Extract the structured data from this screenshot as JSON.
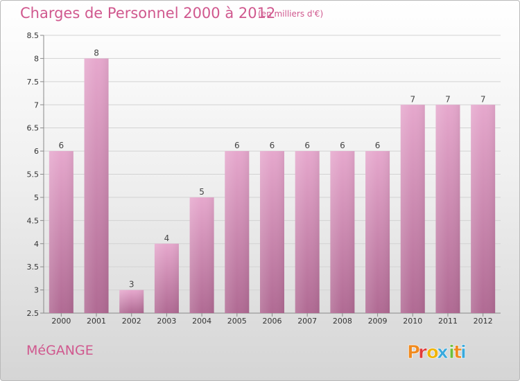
{
  "header": {
    "title": "Charges de Personnel 2000 à 2012",
    "unit": "(en milliers d'€)"
  },
  "footer": {
    "commune": "MéGANGE",
    "logo_text": "Proxiti"
  },
  "colors": {
    "title": "#d0588e",
    "bar_top": "#e6a8cd",
    "bar_bottom": "#b06a93",
    "logo_letters": [
      "#f08a1e",
      "#e03a3a",
      "#f0b400",
      "#39a9dc",
      "#6cbf3c",
      "#f08a1e",
      "#39a9dc"
    ]
  },
  "chart_data": {
    "type": "bar",
    "title": "Charges de Personnel 2000 à 2012",
    "subtitle": "(en milliers d'€)",
    "categories": [
      "2000",
      "2001",
      "2002",
      "2003",
      "2004",
      "2005",
      "2006",
      "2007",
      "2008",
      "2009",
      "2010",
      "2011",
      "2012"
    ],
    "values": [
      6,
      8,
      3,
      4,
      5,
      6,
      6,
      6,
      6,
      6,
      7,
      7,
      7
    ],
    "data_labels": [
      "6",
      "8",
      "3",
      "4",
      "5",
      "6",
      "6",
      "6",
      "6",
      "6",
      "7",
      "7",
      "7"
    ],
    "ylim": [
      2.5,
      8.5
    ],
    "yticks": [
      2.5,
      3,
      3.5,
      4,
      4.5,
      5,
      5.5,
      6,
      6.5,
      7,
      7.5,
      8,
      8.5
    ],
    "ytick_labels": [
      "2.5",
      "3",
      "3.5",
      "4",
      "4.5",
      "5",
      "5.5",
      "6",
      "6.5",
      "7",
      "7.5",
      "8",
      "8.5"
    ],
    "xlabel": "",
    "ylabel": "",
    "grid": true
  }
}
